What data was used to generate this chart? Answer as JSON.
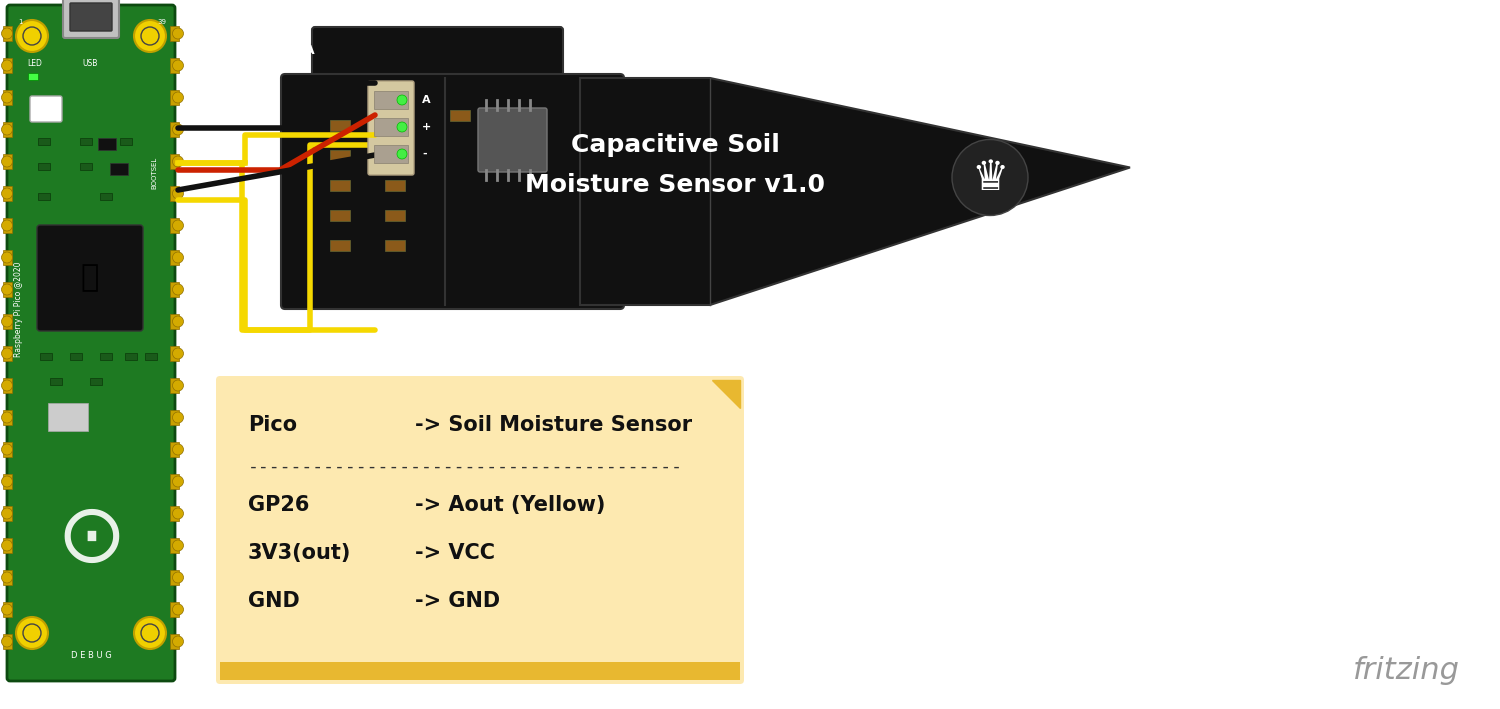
{
  "bg_color": "#ffffff",
  "note_bg": "#fde9b0",
  "note_border": "#e8b830",
  "note_text_lines": [
    [
      "Pico",
      "-> Soil Moisture Sensor"
    ],
    [
      "----------------------------------------",
      ""
    ],
    [
      "GP26",
      "-> Aout (Yellow)"
    ],
    [
      "3V3(out)",
      "-> VCC"
    ],
    [
      "GND",
      "-> GND"
    ]
  ],
  "fritzing_text": "fritzing",
  "fritzing_color": "#999999",
  "sensor_label_line1": "Capacitive Soil",
  "sensor_label_line2": "Moisture Sensor v1.0",
  "wire_black": "#111111",
  "wire_yellow": "#f5d800",
  "wire_red": "#cc2200",
  "pico_green": "#1e7a22",
  "pico_dark_green": "#165918",
  "pico_pin_color": "#c8a000",
  "sensor_black": "#111111",
  "connector_beige": "#d4c8a0",
  "connector_green_led": "#44ee44"
}
